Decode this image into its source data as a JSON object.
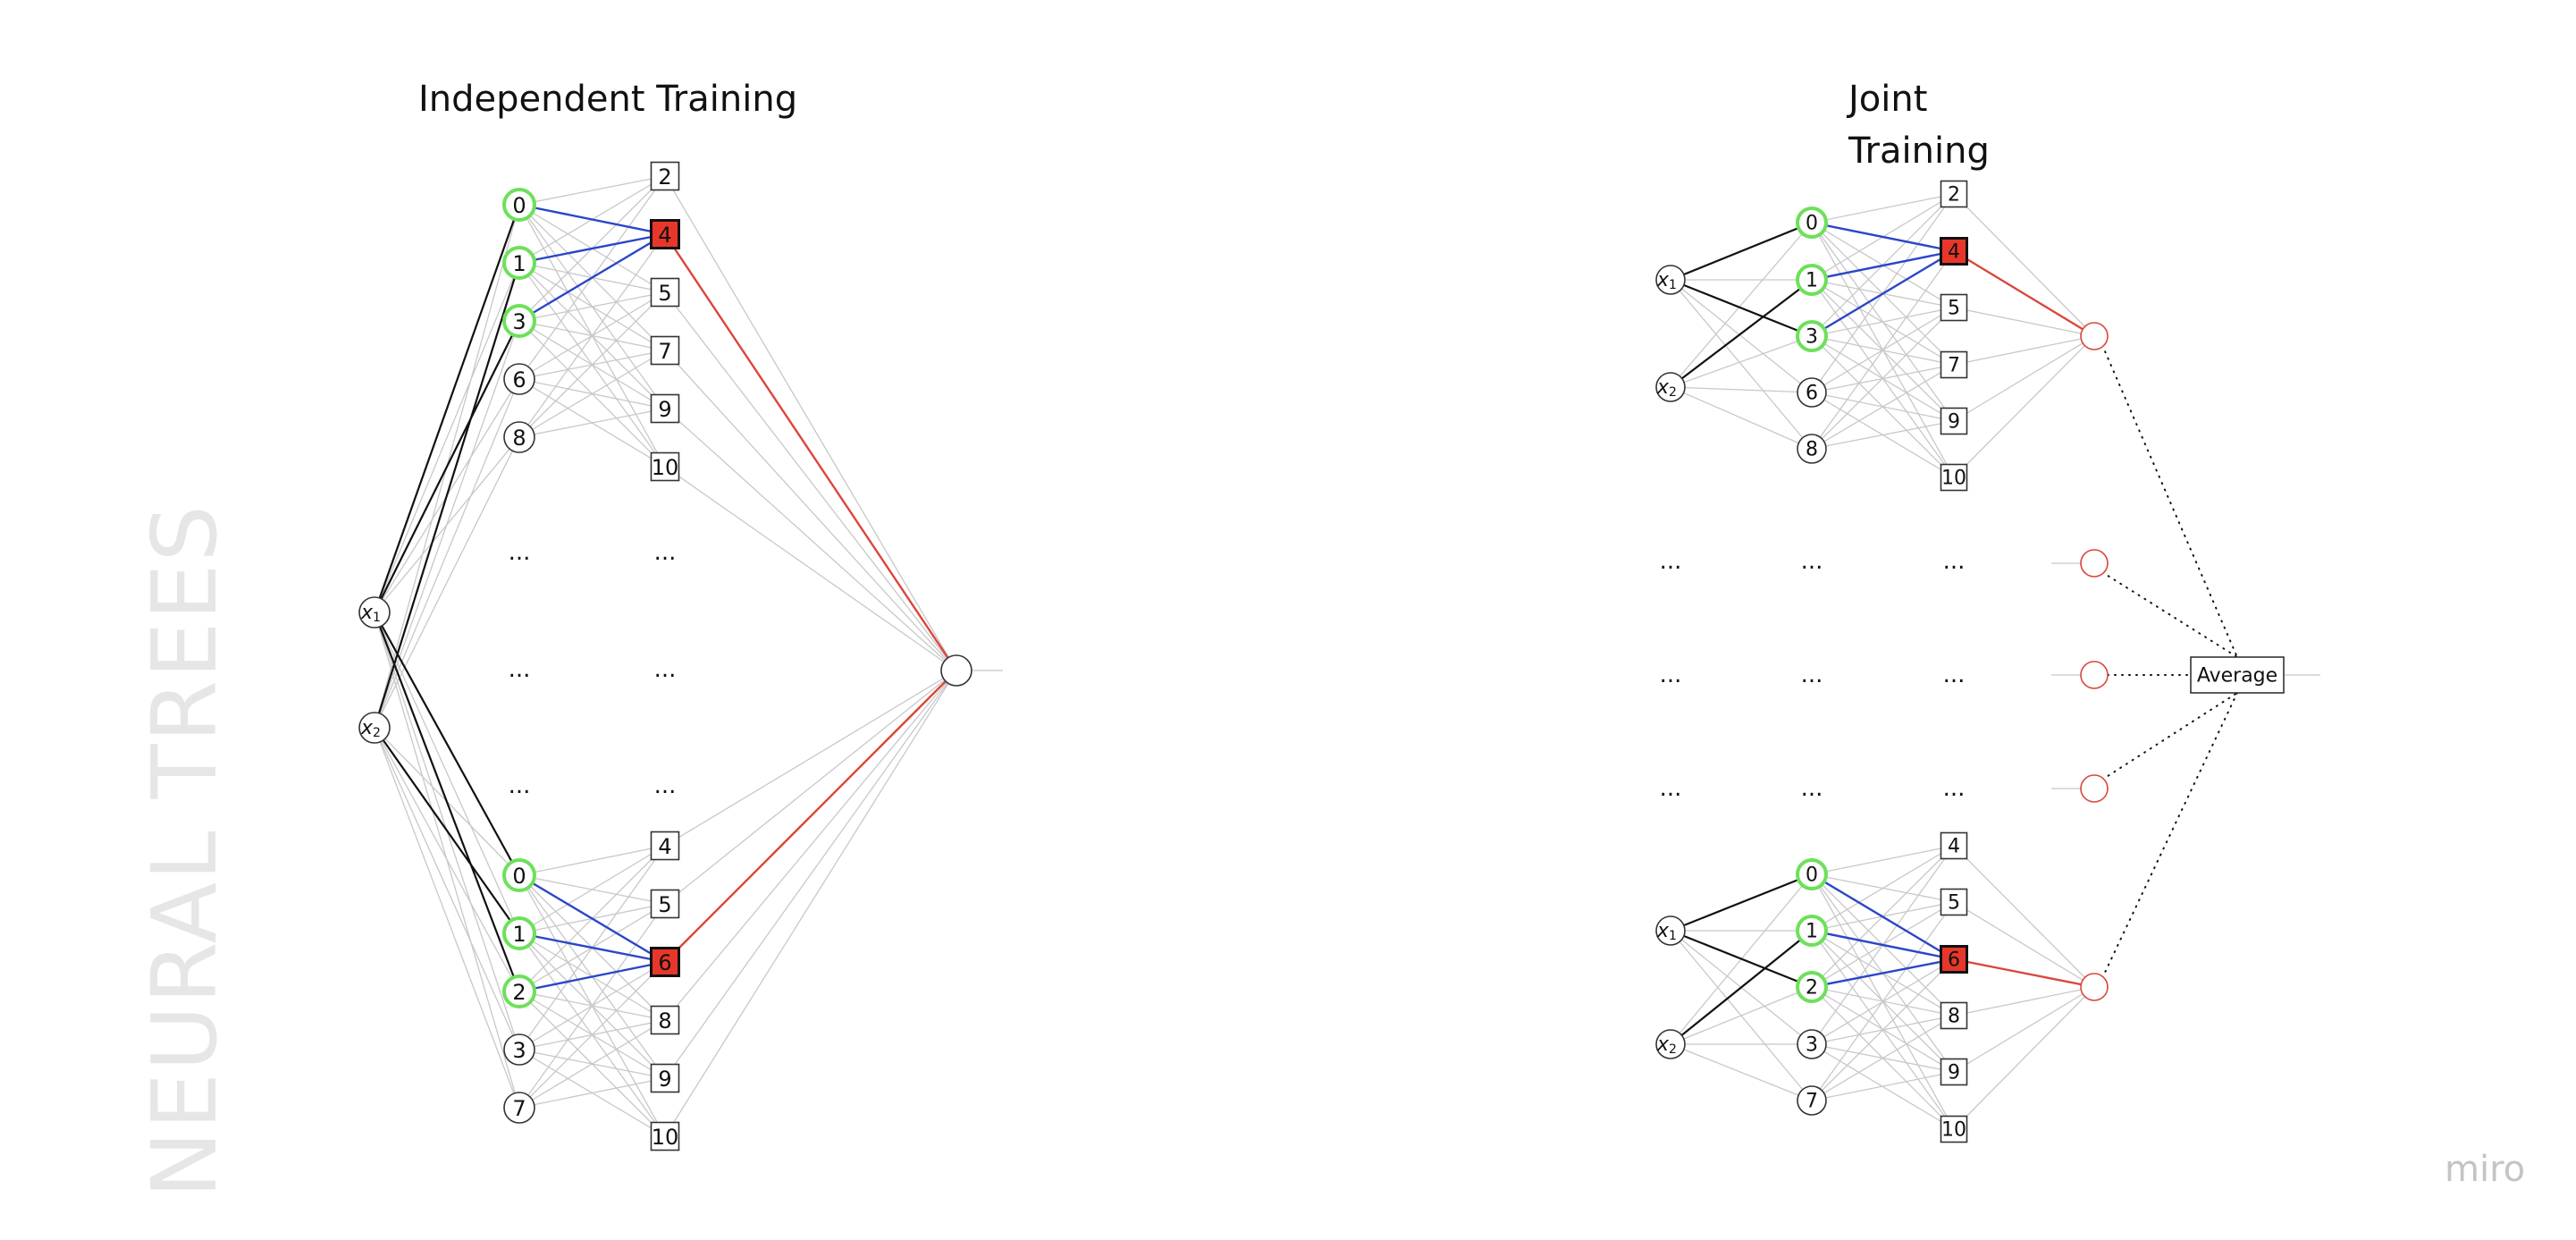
{
  "titles": {
    "left": "Independent Training",
    "right_line1": "Joint",
    "right_line2": "Training"
  },
  "watermark": "NEURAL TREES",
  "brand": "miro",
  "colors": {
    "active_node": "#6ee05a",
    "selected_leaf": "#e8372a",
    "path_edge": "#2b45c8",
    "output_edge": "#d9473c",
    "light_edge": "#c8c8c8"
  },
  "inputs": {
    "x1": "x1",
    "x2": "x2",
    "sub1": "1",
    "sub2": "2"
  },
  "ellipsis": "...",
  "independent": {
    "top_tree": {
      "inner": [
        "0",
        "1",
        "3",
        "6",
        "8"
      ],
      "active_inner": [
        "0",
        "1",
        "3"
      ],
      "leaves": [
        "2",
        "4",
        "5",
        "7",
        "9",
        "10"
      ],
      "selected_leaf": "4"
    },
    "bottom_tree": {
      "inner": [
        "0",
        "1",
        "2",
        "3",
        "7"
      ],
      "active_inner": [
        "0",
        "1",
        "2"
      ],
      "leaves": [
        "4",
        "5",
        "6",
        "8",
        "9",
        "10"
      ],
      "selected_leaf": "6"
    }
  },
  "joint": {
    "top_tree": {
      "inner": [
        "0",
        "1",
        "3",
        "6",
        "8"
      ],
      "active_inner": [
        "0",
        "1",
        "3"
      ],
      "leaves": [
        "2",
        "4",
        "5",
        "7",
        "9",
        "10"
      ],
      "selected_leaf": "4"
    },
    "bottom_tree": {
      "inner": [
        "0",
        "1",
        "2",
        "3",
        "7"
      ],
      "active_inner": [
        "0",
        "1",
        "2"
      ],
      "leaves": [
        "4",
        "5",
        "6",
        "8",
        "9",
        "10"
      ],
      "selected_leaf": "6"
    },
    "aggregator_label": "Average"
  }
}
